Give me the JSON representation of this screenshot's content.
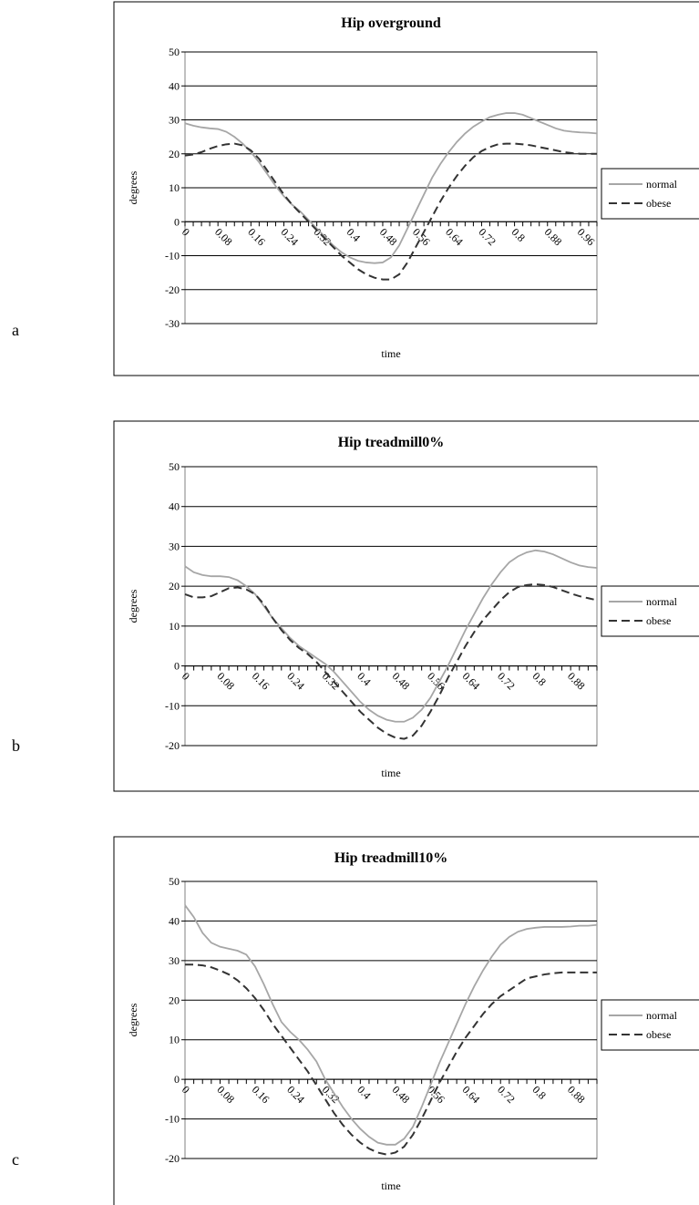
{
  "chart_data": [
    {
      "type": "line",
      "panel": "a",
      "title": "Hip overground",
      "x_label": "time",
      "y_label": "degrees",
      "legend": "right",
      "grid": true,
      "categories": [
        "0",
        null,
        null,
        null,
        "0.08",
        null,
        null,
        null,
        "0.16",
        null,
        null,
        null,
        "0.24",
        null,
        null,
        null,
        "0.32",
        null,
        null,
        null,
        "0.4",
        null,
        null,
        null,
        "0.48",
        null,
        null,
        null,
        "0.56",
        null,
        null,
        null,
        "0.64",
        null,
        null,
        null,
        "0.72",
        null,
        null,
        null,
        "0.8",
        null,
        null,
        null,
        "0.88",
        null,
        null,
        null,
        "0.96",
        null,
        null
      ],
      "ylim": [
        -30,
        50
      ],
      "yticks": [
        -30,
        -20,
        -10,
        0,
        10,
        20,
        30,
        40,
        50
      ],
      "series": [
        {
          "name": "normal",
          "color": "#a6a6a6",
          "dash": false,
          "values": [
            29,
            28.3,
            27.8,
            27.5,
            27.3,
            26.5,
            25,
            23,
            20.5,
            17.5,
            14,
            10.5,
            7.5,
            5,
            3,
            0.5,
            -2,
            -4.5,
            -7,
            -9,
            -10.5,
            -11.5,
            -12,
            -12.2,
            -12,
            -10.5,
            -7,
            -2,
            3,
            8,
            13,
            17,
            20.5,
            23.5,
            26,
            28,
            29.5,
            30.8,
            31.5,
            32,
            32,
            31.5,
            30.5,
            29.5,
            28.5,
            27.5,
            26.8,
            26.5,
            26.3,
            26.2,
            26
          ]
        },
        {
          "name": "obese",
          "color": "#333333",
          "dash": true,
          "values": [
            19.5,
            19.8,
            20.5,
            21.5,
            22.3,
            22.8,
            23,
            22.5,
            21,
            18.5,
            15,
            11.5,
            8,
            5,
            2.5,
            0,
            -2.5,
            -5,
            -7.5,
            -10,
            -12,
            -14,
            -15.5,
            -16.5,
            -17,
            -17,
            -15.5,
            -12,
            -7.5,
            -3,
            1.5,
            6,
            10,
            13.5,
            16.5,
            19,
            20.8,
            22,
            22.8,
            23,
            23,
            22.8,
            22.5,
            22,
            21.5,
            21,
            20.5,
            20.2,
            20,
            20,
            20
          ]
        }
      ]
    },
    {
      "type": "line",
      "panel": "b",
      "title": "Hip treadmill0%",
      "x_label": "time",
      "y_label": "degrees",
      "legend": "right",
      "grid": true,
      "categories": [
        "0",
        null,
        null,
        null,
        "0.08",
        null,
        null,
        null,
        "0.16",
        null,
        null,
        null,
        "0.24",
        null,
        null,
        null,
        "0.32",
        null,
        null,
        null,
        "0.4",
        null,
        null,
        null,
        "0.48",
        null,
        null,
        null,
        "0.56",
        null,
        null,
        null,
        "0.64",
        null,
        null,
        null,
        "0.72",
        null,
        null,
        null,
        "0.8",
        null,
        null,
        null,
        "0.88",
        null,
        null,
        null
      ],
      "ylim": [
        -20,
        50
      ],
      "yticks": [
        -20,
        -10,
        0,
        10,
        20,
        30,
        40,
        50
      ],
      "series": [
        {
          "name": "normal",
          "color": "#a6a6a6",
          "dash": false,
          "values": [
            25,
            23.5,
            22.8,
            22.5,
            22.5,
            22.3,
            21.5,
            20,
            18,
            15,
            12,
            9.5,
            7,
            5,
            3.5,
            2,
            0.5,
            -1.5,
            -4,
            -6.5,
            -9,
            -11,
            -12.5,
            -13.5,
            -14,
            -14,
            -13,
            -11,
            -8,
            -4,
            0,
            4.5,
            9,
            13,
            17,
            20.5,
            23.5,
            26,
            27.5,
            28.5,
            29,
            28.7,
            28,
            27,
            26,
            25.2,
            24.8,
            24.6
          ]
        },
        {
          "name": "obese",
          "color": "#333333",
          "dash": true,
          "values": [
            18,
            17.2,
            17.2,
            17.5,
            18.5,
            19.5,
            19.7,
            19.2,
            18,
            15.5,
            12,
            9,
            6.5,
            4.5,
            3,
            1,
            -1.5,
            -4,
            -6.5,
            -9,
            -11.5,
            -13.5,
            -15.5,
            -17,
            -18,
            -18.3,
            -17.5,
            -15,
            -11.5,
            -7.5,
            -3,
            1,
            5,
            8.5,
            11.5,
            14,
            16.5,
            18.5,
            19.8,
            20.3,
            20.5,
            20.3,
            19.8,
            19,
            18.2,
            17.5,
            17,
            16.5
          ]
        }
      ]
    },
    {
      "type": "line",
      "panel": "c",
      "title": "Hip treadmill10%",
      "x_label": "time",
      "y_label": "degrees",
      "legend": "right",
      "grid": true,
      "categories": [
        "0",
        null,
        null,
        null,
        "0.08",
        null,
        null,
        null,
        "0.16",
        null,
        null,
        null,
        "0.24",
        null,
        null,
        null,
        "0.32",
        null,
        null,
        null,
        "0.4",
        null,
        null,
        null,
        "0.48",
        null,
        null,
        null,
        "0.56",
        null,
        null,
        null,
        "0.64",
        null,
        null,
        null,
        "0.72",
        null,
        null,
        null,
        "0.8",
        null,
        null,
        null,
        "0.88",
        null,
        null,
        null
      ],
      "ylim": [
        -20,
        50
      ],
      "yticks": [
        -20,
        -10,
        0,
        10,
        20,
        30,
        40,
        50
      ],
      "series": [
        {
          "name": "normal",
          "color": "#a6a6a6",
          "dash": false,
          "values": [
            44,
            41,
            37,
            34.5,
            33.5,
            33,
            32.5,
            31.5,
            28.5,
            24,
            19,
            14.5,
            12,
            10,
            7.5,
            4.5,
            0,
            -3.5,
            -7,
            -10,
            -12.5,
            -14.5,
            -16,
            -16.5,
            -16.5,
            -15,
            -12,
            -7,
            -1.5,
            4,
            9,
            14,
            19,
            23.5,
            27.5,
            31,
            34,
            36,
            37.3,
            38,
            38.3,
            38.5,
            38.5,
            38.5,
            38.6,
            38.8,
            38.8,
            39
          ]
        },
        {
          "name": "obese",
          "color": "#333333",
          "dash": true,
          "values": [
            29,
            29,
            28.8,
            28.3,
            27.5,
            26.5,
            25,
            23,
            20.5,
            17.5,
            14,
            11,
            8,
            5,
            2,
            -1.5,
            -5,
            -8.5,
            -11.5,
            -14,
            -16,
            -17.5,
            -18.5,
            -19,
            -18.5,
            -17,
            -14,
            -10,
            -5.5,
            -1,
            3,
            7,
            10.5,
            13.5,
            16.5,
            19,
            21,
            22.5,
            24,
            25.5,
            26,
            26.5,
            26.8,
            27,
            27,
            27,
            27,
            27
          ]
        }
      ]
    }
  ]
}
